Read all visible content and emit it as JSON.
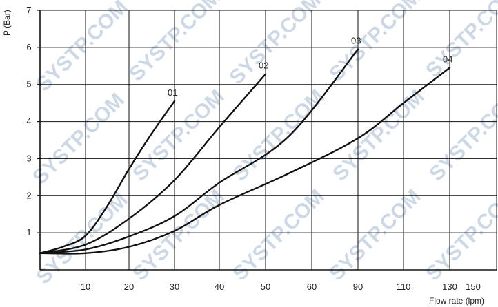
{
  "chart_data": {
    "type": "line",
    "xlabel": "Flow rate (lpm)",
    "ylabel": "P (Bar)",
    "ylim": [
      0,
      7
    ],
    "x_ticks": [
      "10",
      "20",
      "30",
      "40",
      "50",
      "60",
      "90",
      "110",
      "130",
      "150"
    ],
    "y_ticks": [
      "1",
      "2",
      "3",
      "4",
      "5",
      "6",
      "7"
    ],
    "grid": true,
    "series": [
      {
        "name": "01",
        "x": [
          0,
          5,
          10,
          15,
          20,
          25,
          30
        ],
        "values": [
          0.45,
          0.62,
          0.92,
          1.72,
          2.72,
          3.68,
          4.55
        ]
      },
      {
        "name": "02",
        "x": [
          0,
          10,
          20,
          30,
          40,
          50
        ],
        "values": [
          0.45,
          0.68,
          1.38,
          2.42,
          3.85,
          5.28
        ]
      },
      {
        "name": "03",
        "x": [
          0,
          10,
          20,
          30,
          40,
          60,
          90
        ],
        "values": [
          0.45,
          0.55,
          0.9,
          1.45,
          2.35,
          3.6,
          5.95
        ]
      },
      {
        "name": "04",
        "x": [
          0,
          10,
          20,
          30,
          40,
          60,
          90,
          110,
          130
        ],
        "values": [
          0.45,
          0.45,
          0.62,
          1.05,
          1.75,
          2.6,
          3.55,
          4.5,
          5.45
        ]
      }
    ]
  },
  "watermark": "SYSTP.COM"
}
